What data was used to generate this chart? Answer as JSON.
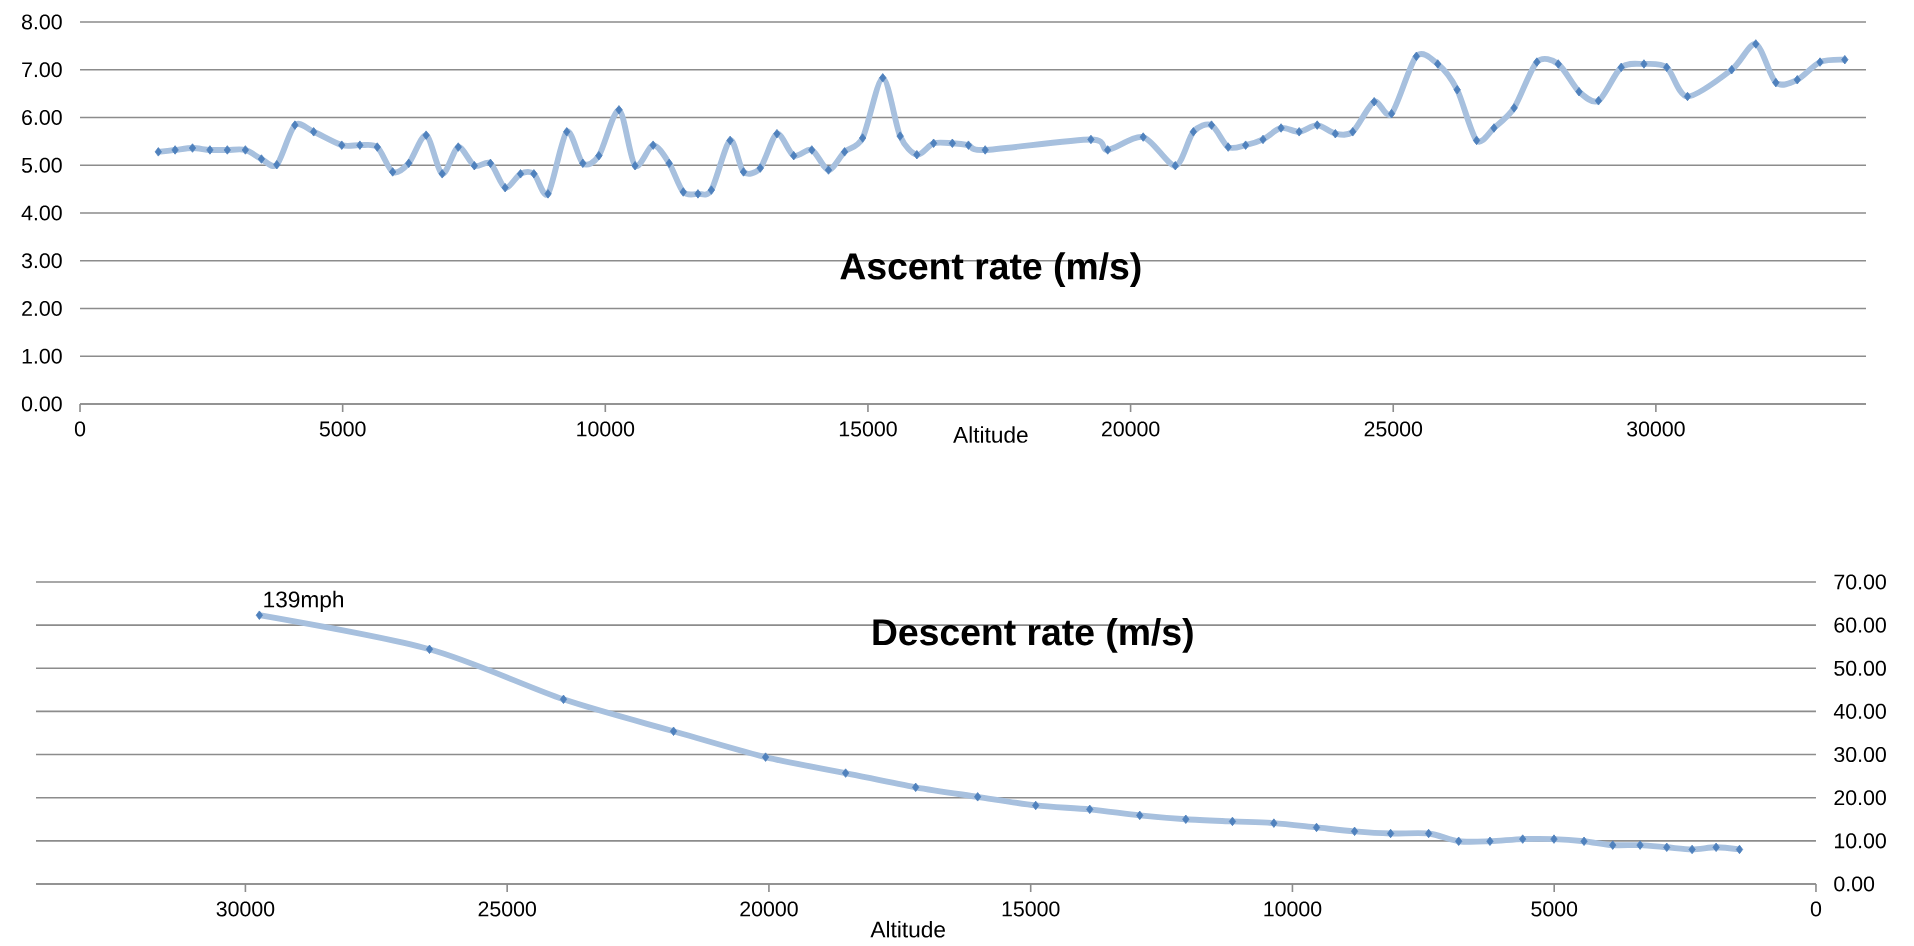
{
  "chart_data": [
    {
      "type": "line",
      "title": "Ascent rate (m/s)",
      "xlabel": "Altitude",
      "xlim": [
        0,
        34000
      ],
      "xticks": [
        0,
        5000,
        10000,
        15000,
        20000,
        25000,
        30000
      ],
      "ylim": [
        0,
        8
      ],
      "yticks": [
        {
          "value": 0,
          "label": "0.00"
        },
        {
          "value": 1,
          "label": "1.00"
        },
        {
          "value": 2,
          "label": "2.00"
        },
        {
          "value": 3,
          "label": "3.00"
        },
        {
          "value": 4,
          "label": "4.00"
        },
        {
          "value": 5,
          "label": "5.00"
        },
        {
          "value": 6,
          "label": "6.00"
        },
        {
          "value": 7,
          "label": "7.00"
        },
        {
          "value": 8,
          "label": "8.00"
        }
      ],
      "grid": "y",
      "marker": "diamond",
      "line_style": "solid",
      "series": [
        {
          "color": "#4f81bd",
          "x": [
            1491,
            1810,
            2141,
            2473,
            2804,
            3148,
            3454,
            3747,
            4091,
            4448,
            4983,
            5328,
            5659,
            5952,
            6258,
            6589,
            6895,
            7201,
            7507,
            7813,
            8093,
            8386,
            8641,
            8909,
            9266,
            9572,
            9878,
            10260,
            10566,
            10910,
            11216,
            11484,
            11764,
            12019,
            12376,
            12631,
            12950,
            13268,
            13587,
            13931,
            14249,
            14555,
            14899,
            15282,
            15613,
            15931,
            16250,
            16607,
            16913,
            17232,
            19245,
            19564,
            20240,
            20851,
            21195,
            21540,
            21858,
            22190,
            22521,
            22865,
            23209,
            23553,
            23898,
            24229,
            24637,
            24968,
            25440,
            25847,
            26217,
            26587,
            26918,
            27301,
            27734,
            28142,
            28537,
            28907,
            29340,
            29773,
            30207,
            30602,
            31443,
            31902,
            32284,
            32692,
            33125,
            33597
          ],
          "values": [
            5.28,
            5.32,
            5.36,
            5.32,
            5.32,
            5.32,
            5.13,
            5.01,
            5.84,
            5.7,
            5.42,
            5.42,
            5.38,
            4.86,
            5.04,
            5.63,
            4.82,
            5.38,
            4.99,
            5.04,
            4.53,
            4.82,
            4.82,
            4.4,
            5.7,
            5.04,
            5.2,
            6.16,
            4.99,
            5.42,
            5.04,
            4.44,
            4.4,
            4.48,
            5.52,
            4.86,
            4.94,
            5.66,
            5.2,
            5.32,
            4.9,
            5.28,
            5.57,
            6.83,
            5.61,
            5.22,
            5.46,
            5.46,
            5.42,
            5.32,
            5.54,
            5.32,
            5.59,
            4.99,
            5.7,
            5.84,
            5.38,
            5.42,
            5.54,
            5.78,
            5.7,
            5.84,
            5.66,
            5.7,
            6.33,
            6.08,
            7.28,
            7.12,
            6.58,
            5.52,
            5.78,
            6.2,
            7.16,
            7.12,
            6.54,
            6.35,
            7.05,
            7.12,
            7.05,
            6.44,
            7.0,
            7.54,
            6.73,
            6.79,
            7.16,
            7.21
          ]
        }
      ]
    },
    {
      "type": "line",
      "title": "Descent rate (m/s)",
      "xlabel": "Altitude",
      "xlim": [
        34000,
        0
      ],
      "xticks": [
        30000,
        25000,
        20000,
        15000,
        10000,
        5000,
        0
      ],
      "ylim": [
        0,
        70
      ],
      "yticks": [
        {
          "value": 0,
          "label": "0.00"
        },
        {
          "value": 10,
          "label": "10.00"
        },
        {
          "value": 20,
          "label": "20.00"
        },
        {
          "value": 30,
          "label": "30.00"
        },
        {
          "value": 40,
          "label": "40.00"
        },
        {
          "value": 50,
          "label": "50.00"
        },
        {
          "value": 60,
          "label": "60.00"
        },
        {
          "value": 70,
          "label": "70.00"
        }
      ],
      "grid": "y",
      "marker": "diamond",
      "line_style": "solid",
      "annotations": [
        {
          "text": "139mph",
          "x": 29733,
          "y": 62.3
        }
      ],
      "series": [
        {
          "color": "#4f81bd",
          "x": [
            29733,
            26484,
            23924,
            21822,
            20064,
            18535,
            17197,
            16013,
            14904,
            13872,
            12917,
            12037,
            11146,
            10355,
            9540,
            8813,
            8125,
            7399,
            6825,
            6227,
            5602,
            5004,
            4430,
            3882,
            3360,
            2850,
            2366,
            1907,
            1461
          ],
          "values": [
            62.3,
            54.4,
            42.8,
            35.4,
            29.4,
            25.7,
            22.4,
            20.2,
            18.2,
            17.3,
            15.9,
            15.0,
            14.5,
            14.1,
            13.1,
            12.2,
            11.7,
            11.7,
            9.9,
            9.9,
            10.4,
            10.4,
            9.9,
            9.0,
            9.0,
            8.5,
            8.0,
            8.5,
            8.0
          ]
        }
      ]
    }
  ]
}
